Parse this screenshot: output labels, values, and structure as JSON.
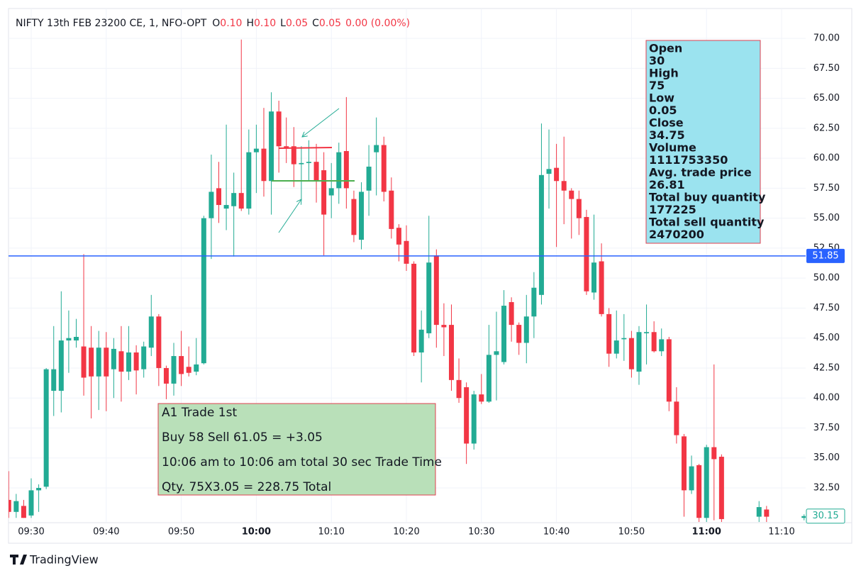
{
  "chart_data": {
    "type": "candlestick",
    "symbol": "NIFTY 13th FEB 23200 CE, 1, NFO-OPT",
    "legend_ohlc": [
      {
        "key": "O",
        "value": "0.10"
      },
      {
        "key": "H",
        "value": "0.10"
      },
      {
        "key": "L",
        "value": "0.05"
      },
      {
        "key": "C",
        "value": "0.05"
      }
    ],
    "legend_change": "0.00 (0.00%)",
    "up_color": "#22ab94",
    "down_color": "#f23645",
    "categories": [
      null,
      null,
      null,
      "09:30",
      null,
      null,
      null,
      null,
      null,
      null,
      null,
      null,
      null,
      "09:40",
      null,
      null,
      null,
      null,
      null,
      null,
      null,
      null,
      null,
      "09:50",
      null,
      null,
      null,
      null,
      null,
      null,
      null,
      null,
      null,
      "10:00",
      null,
      null,
      null,
      null,
      null,
      null,
      null,
      null,
      null,
      "10:10",
      null,
      null,
      null,
      null,
      null,
      null,
      null,
      null,
      null,
      "10:20",
      null,
      null,
      null,
      null,
      null,
      null,
      null,
      null,
      null,
      "10:30",
      null,
      null,
      null,
      null,
      null,
      null,
      null,
      null,
      null,
      "10:40",
      null,
      null,
      null,
      null,
      null,
      null,
      null,
      null,
      null,
      "10:50",
      null,
      null,
      null,
      null,
      null,
      null,
      null,
      null,
      null,
      "11:00",
      null,
      null,
      null,
      null,
      null,
      null,
      null,
      null,
      null,
      "11:10",
      null,
      null,
      null
    ],
    "open": [
      31.5,
      30.5,
      31,
      30.2,
      32.3,
      32.6,
      40.6,
      40.6,
      44.8,
      44.8,
      44.3,
      44.2,
      41.8,
      44.2,
      42.4,
      43.9,
      42.2,
      43.8,
      42.4,
      44.2,
      46.8,
      42.5,
      41.2,
      43.5,
      42.6,
      42.2,
      42.9,
      55,
      57.5,
      55.8,
      56,
      57.1,
      55.8,
      60.5,
      60.8,
      58.1,
      63.9,
      61,
      61,
      59.5,
      59.6,
      59.7,
      59,
      56.9,
      57.5,
      60.6,
      56.6,
      53.2,
      57.3,
      60.5,
      61.1,
      57.3,
      54.2,
      53.1,
      51.2,
      43.8,
      45.4,
      51.9,
      46.1,
      46.1,
      41.5,
      40.9,
      36.2,
      40.3,
      39.7,
      43.6,
      43,
      48,
      46.1,
      44.6,
      46.8,
      48.6,
      58.7,
      59.2,
      58.1,
      57.3,
      56.6,
      55.1,
      48.8,
      51.4,
      47,
      43.7,
      44.9,
      45,
      42.2,
      45.4,
      45.5,
      43.9,
      44.9,
      39.7,
      36.8,
      32.3,
      34.4,
      30,
      35.9,
      35.1,
      null,
      null,
      null,
      null,
      30.1,
      30.7,
      null,
      null,
      null,
      null,
      30
    ],
    "high": [
      33.9,
      32,
      31.5,
      33.3,
      32.8,
      42.5,
      46,
      48.9,
      47.3,
      46.6,
      52,
      46,
      45.6,
      45.5,
      45,
      46,
      46,
      44.4,
      44.7,
      48.6,
      47,
      42.7,
      44.6,
      45.6,
      44.3,
      45,
      55.2,
      60.3,
      59.7,
      62.8,
      58.8,
      69.9,
      62.4,
      62.8,
      64.2,
      65.5,
      64.8,
      63.4,
      62.6,
      61,
      61.5,
      61.2,
      60.5,
      59.6,
      61.3,
      65.1,
      57.3,
      58,
      61.1,
      63.4,
      61.8,
      58.4,
      54.5,
      54.4,
      51.4,
      47.3,
      55.2,
      52.4,
      47.9,
      47.8,
      43.3,
      41.3,
      40.6,
      42,
      46.1,
      47.2,
      49,
      48.4,
      46.3,
      48.6,
      50.5,
      62.9,
      62.4,
      61.2,
      61.8,
      57.5,
      57.3,
      55.7,
      55.3,
      52.9,
      47.5,
      47.3,
      47,
      45.6,
      46,
      47.8,
      46.4,
      45.8,
      45.1,
      40.9,
      37,
      35.2,
      34.5,
      36.1,
      42.8,
      35.3,
      null,
      null,
      null,
      null,
      31.4,
      31,
      null,
      null,
      null,
      null,
      30.3
    ],
    "low": [
      30,
      30,
      30,
      30,
      30.5,
      32.4,
      38.5,
      38.8,
      42.1,
      44.2,
      40.2,
      38.3,
      39,
      38.9,
      40,
      39.7,
      41.5,
      40.3,
      41.7,
      43.5,
      41,
      39.9,
      40.2,
      41,
      41.8,
      41.9,
      42.8,
      51.6,
      54.6,
      54,
      51.8,
      55.6,
      55.3,
      57.1,
      56.8,
      55.3,
      58.8,
      59.6,
      57.6,
      56.6,
      58.1,
      56.3,
      51.9,
      55,
      56.2,
      55.8,
      53,
      52.4,
      55.2,
      56.9,
      56.4,
      53.3,
      51.4,
      50.6,
      43.5,
      41.3,
      45,
      44.2,
      43.5,
      40.6,
      39.6,
      34.5,
      35.7,
      39.5,
      39.6,
      39.8,
      42.8,
      44.7,
      43.6,
      42.9,
      45,
      47.8,
      55.8,
      52.6,
      54.5,
      53.3,
      53.6,
      48.6,
      48.2,
      46.8,
      42.6,
      43.3,
      43.1,
      41.7,
      41.1,
      42.8,
      43.8,
      43.5,
      38.9,
      36.2,
      30.1,
      32,
      29,
      29.5,
      29.8,
      29,
      null,
      null,
      null,
      null,
      29.5,
      29.5,
      null,
      null,
      null,
      null,
      29.8
    ],
    "close": [
      30.5,
      31.4,
      30,
      32.3,
      32.5,
      42.4,
      42.4,
      44.8,
      45,
      45.1,
      41.7,
      41.8,
      44.2,
      41.8,
      44.1,
      42.2,
      43.8,
      42.3,
      44.3,
      46.8,
      42.5,
      41.2,
      43.5,
      42,
      42.1,
      42.8,
      55,
      57.2,
      56.1,
      56.1,
      57.1,
      55.8,
      60.5,
      60.8,
      58.1,
      63.9,
      61,
      60.8,
      59.5,
      59.6,
      59.7,
      58.1,
      55.3,
      57.5,
      60.5,
      57.5,
      53.6,
      57.2,
      59.3,
      61.1,
      57.2,
      54.1,
      52.8,
      51.2,
      43.8,
      45.7,
      51.3,
      46.1,
      45.9,
      41.5,
      40,
      36.2,
      40.3,
      39.7,
      43.6,
      43.9,
      47.7,
      46.1,
      44.6,
      46.8,
      49.2,
      58.6,
      59.1,
      58.1,
      57.3,
      56.6,
      55,
      48.9,
      51.3,
      47,
      43.7,
      44.8,
      45,
      42.4,
      45.5,
      45.5,
      43.9,
      44.9,
      39.7,
      36.9,
      32.3,
      34.3,
      30,
      35.9,
      34.9,
      29.9,
      null,
      null,
      null,
      null,
      30.9,
      30.1,
      null,
      null,
      null,
      null,
      30.15
    ],
    "ylim": [
      29.66,
      72.49
    ],
    "yticks": [
      {
        "value": 32.5,
        "label": "32.50"
      },
      {
        "value": 35,
        "label": "35.00"
      },
      {
        "value": 37.5,
        "label": "37.50"
      },
      {
        "value": 40,
        "label": "40.00"
      },
      {
        "value": 42.5,
        "label": "42.50"
      },
      {
        "value": 45,
        "label": "45.00"
      },
      {
        "value": 47.5,
        "label": "47.50"
      },
      {
        "value": 50,
        "label": "50.00"
      },
      {
        "value": 52.5,
        "label": "52.50"
      },
      {
        "value": 55,
        "label": "55.00"
      },
      {
        "value": 57.5,
        "label": "57.50"
      },
      {
        "value": 60,
        "label": "60.00"
      },
      {
        "value": 62.5,
        "label": "62.50"
      },
      {
        "value": 65,
        "label": "65.00"
      },
      {
        "value": 67.5,
        "label": "67.50"
      },
      {
        "value": 70,
        "label": "70.00"
      }
    ],
    "hline": {
      "value": 51.85,
      "color": "#2962ff"
    },
    "info_box": [
      "Open",
      "30",
      "High",
      "75",
      "Low",
      "0.05",
      "Close",
      "34.75",
      "Volume",
      "1111753350",
      "Avg. trade price",
      "26.81",
      "Total buy quantity",
      "177225",
      "Total sell quantity",
      "2470200"
    ],
    "trade_box": [
      "A1 Trade 1st",
      "Buy 58 Sell 61.05 = +3.05",
      "10:06 am to 10:06 am total  30 sec Trade Time",
      "Qty. 75X3.05 = 228.75  Total"
    ],
    "brand": "TradingView"
  }
}
